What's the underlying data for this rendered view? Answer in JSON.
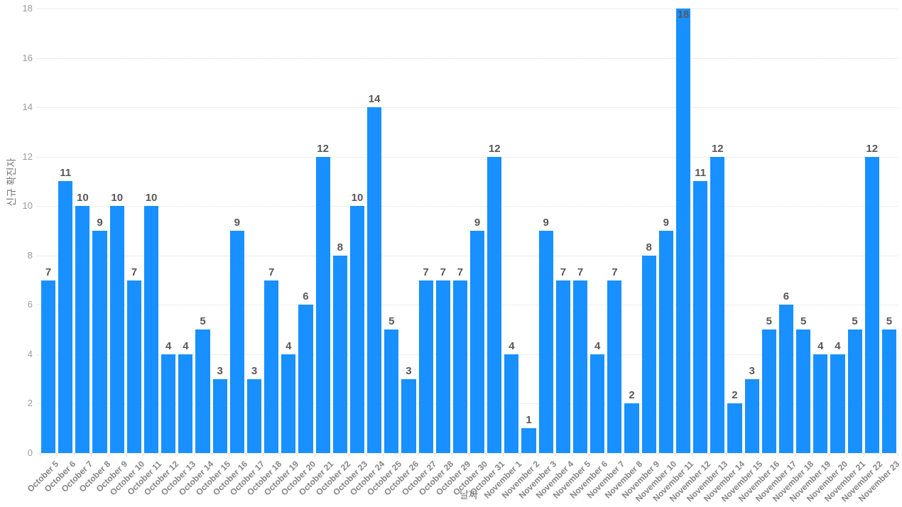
{
  "chart_data": {
    "type": "bar",
    "title": "",
    "xlabel": "날짜",
    "ylabel": "신규 확진자",
    "categories": [
      "October 5",
      "October 6",
      "October 7",
      "October 8",
      "October 9",
      "October 10",
      "October 11",
      "October 12",
      "October 13",
      "October 14",
      "October 15",
      "October 16",
      "October 17",
      "October 18",
      "October 19",
      "October 20",
      "October 21",
      "October 22",
      "October 23",
      "October 24",
      "October 25",
      "October 26",
      "October 27",
      "October 28",
      "October 29",
      "October 30",
      "October 31",
      "November 1",
      "November 2",
      "November 3",
      "November 4",
      "November 5",
      "November 6",
      "November 7",
      "November 8",
      "November 9",
      "November 10",
      "November 11",
      "November 12",
      "November 13",
      "November 14",
      "November 15",
      "November 16",
      "November 17",
      "November 18",
      "November 19",
      "November 20",
      "November 21",
      "November 22",
      "November 23"
    ],
    "values": [
      7,
      11,
      10,
      9,
      10,
      7,
      10,
      4,
      4,
      5,
      3,
      9,
      3,
      7,
      4,
      6,
      12,
      8,
      10,
      14,
      5,
      3,
      7,
      7,
      7,
      9,
      12,
      4,
      1,
      9,
      7,
      7,
      4,
      7,
      2,
      8,
      9,
      18,
      11,
      12,
      2,
      3,
      5,
      6,
      5,
      4,
      4,
      5,
      12,
      5
    ],
    "ylim": [
      0,
      18
    ],
    "ytick_step": 2,
    "grid": "horizontal-dotted",
    "legend": "none",
    "bar_color": "#1890FF",
    "value_label_color": "#57585a",
    "x_tick_color": "#858585",
    "y_tick_color": "#9b9b9b",
    "gridline_color": "#dedede",
    "axis_title_color": "#777777"
  }
}
